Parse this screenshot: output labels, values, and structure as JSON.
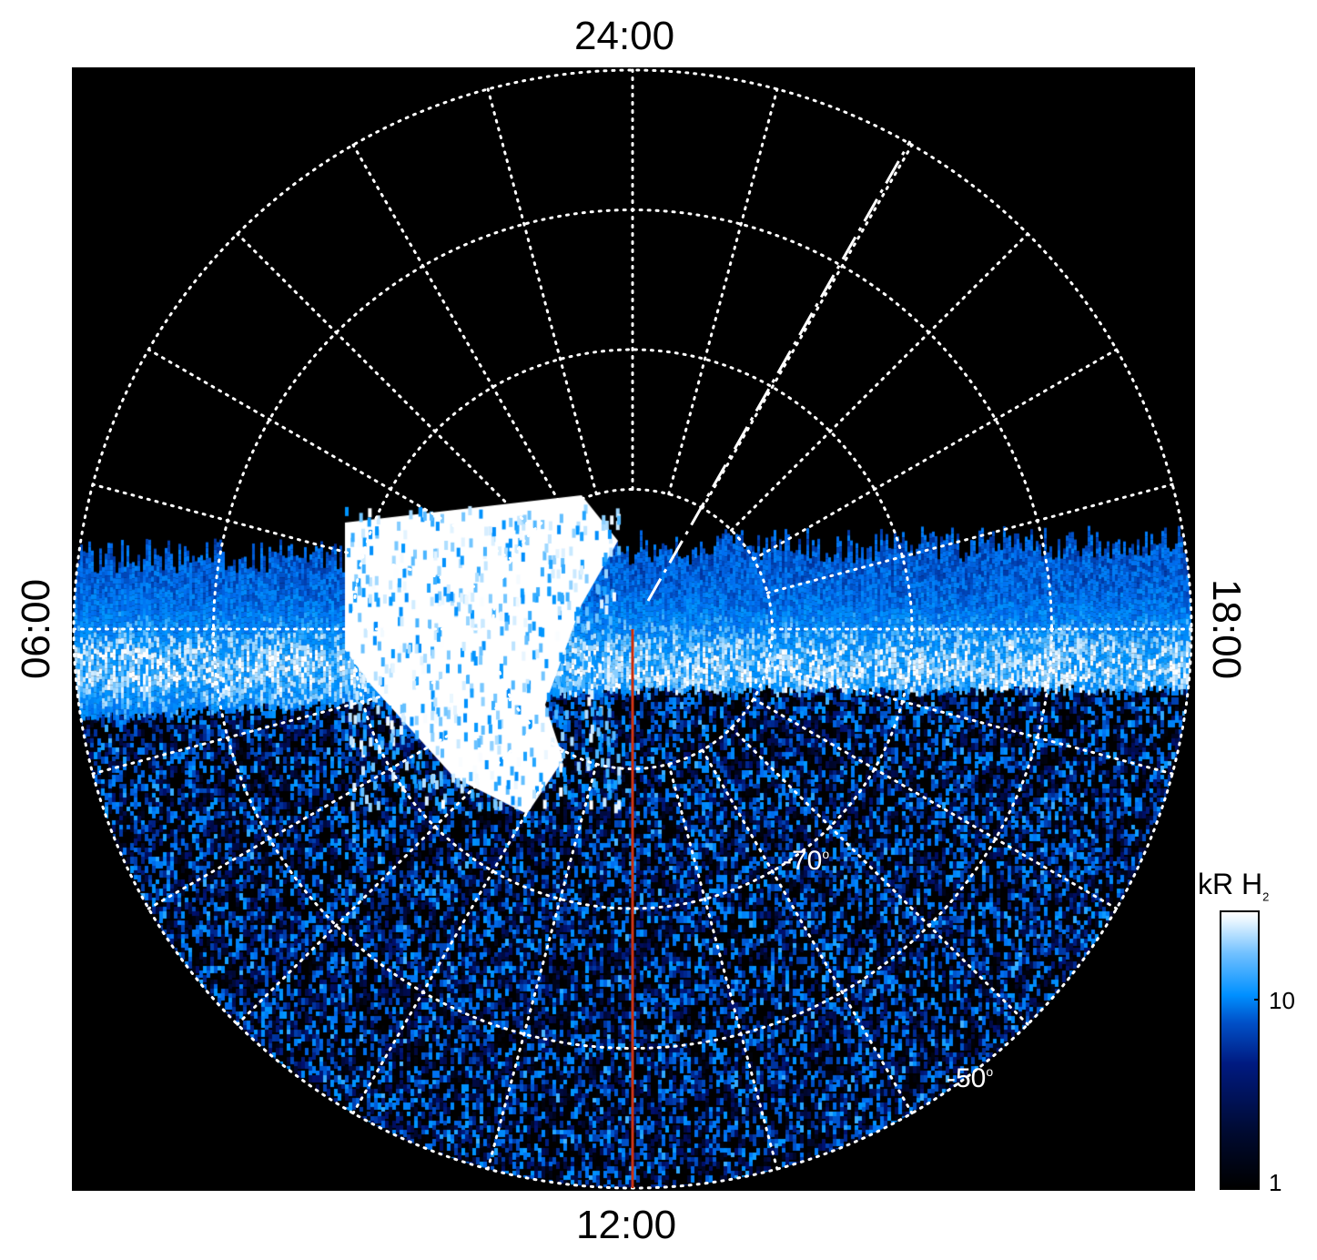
{
  "chart_data": {
    "type": "heatmap",
    "projection": "polar",
    "hemisphere": "south",
    "local_time_labels": {
      "top": "24:00",
      "bottom": "12:00",
      "left": "06:00",
      "right": "18:00"
    },
    "latitude_labels": [
      "-70",
      "-50"
    ],
    "latitude_circles": [
      -80,
      -70,
      -60,
      -50
    ],
    "local_time_grid_step_hours": 1,
    "colorbar": {
      "label": "kR H",
      "label_subscript": "2",
      "scale": "log",
      "ticks": [
        "1",
        "10"
      ],
      "range": [
        1,
        30
      ],
      "colormap": [
        "#000000",
        "#001a80",
        "#0090ff",
        "#ffffff"
      ]
    },
    "overlays": [
      {
        "type": "dashed-line",
        "color": "#ffffff"
      },
      {
        "type": "line",
        "color": "#c83214",
        "local_time": "12:00"
      }
    ],
    "grid": true
  }
}
